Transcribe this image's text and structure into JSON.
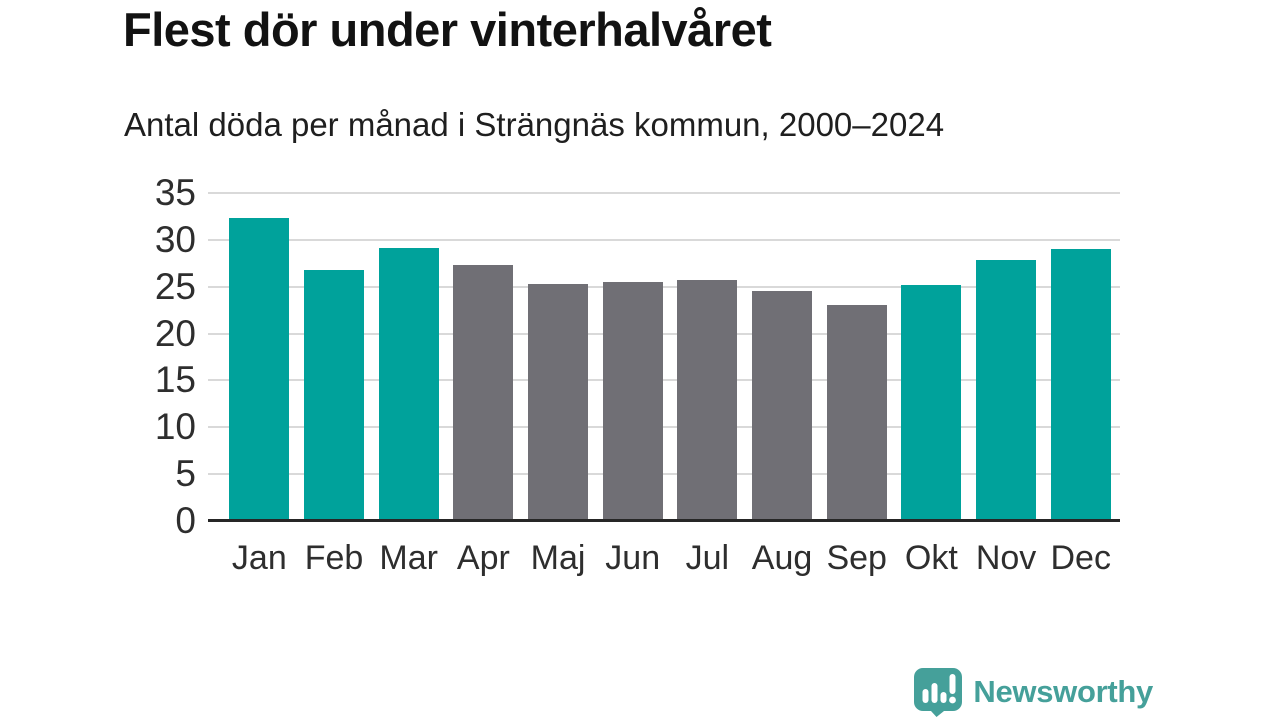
{
  "header": {
    "title": "Flest dör under vinterhalvåret",
    "subtitle": "Antal döda per månad i Strängnäs kommun, 2000–2024"
  },
  "chart_data": {
    "type": "bar",
    "title": "Flest dör under vinterhalvåret",
    "subtitle": "Antal döda per månad i Strängnäs kommun, 2000–2024",
    "categories": [
      "Jan",
      "Feb",
      "Mar",
      "Apr",
      "Maj",
      "Jun",
      "Jul",
      "Aug",
      "Sep",
      "Okt",
      "Nov",
      "Dec"
    ],
    "values": [
      32.3,
      26.8,
      29.1,
      27.3,
      25.3,
      25.5,
      25.7,
      24.5,
      23.1,
      25.2,
      27.8,
      29.0
    ],
    "highlighted": [
      true,
      true,
      true,
      false,
      false,
      false,
      false,
      false,
      false,
      true,
      true,
      true
    ],
    "xlabel": "",
    "ylabel": "",
    "ylim": [
      0,
      35
    ],
    "yticks": [
      0,
      5,
      10,
      15,
      20,
      25,
      30,
      35
    ],
    "grid": "horizontal",
    "legend": "none",
    "colors": {
      "highlight": "#00a29b",
      "regular": "#706f75",
      "gridline": "#d9d9d9",
      "axis": "#262626",
      "tick_text": "#2e2e2e"
    }
  },
  "footer": {
    "brand": "Newsworthy",
    "logo_icon": "speech-bubble-bar-chart-icon",
    "logo_color": "#45a09a"
  }
}
